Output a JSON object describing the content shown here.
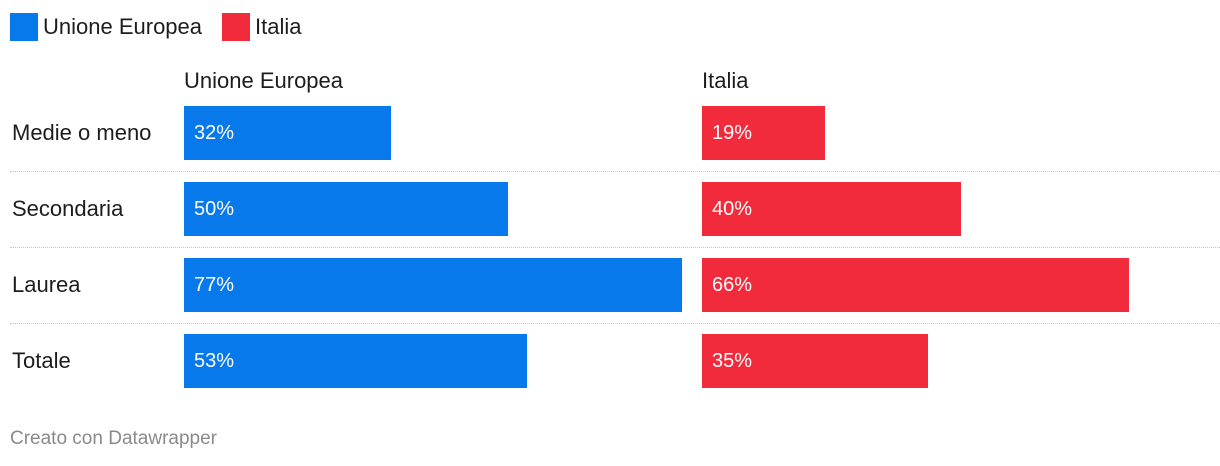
{
  "legend": [
    {
      "label": "Unione Europea",
      "color": "#0779ea"
    },
    {
      "label": "Italia",
      "color": "#f12a3c"
    }
  ],
  "chart_data": {
    "type": "bar",
    "categories": [
      "Medie o meno",
      "Secondaria",
      "Laurea",
      "Totale"
    ],
    "series": [
      {
        "name": "Unione Europea",
        "values": [
          32,
          50,
          77,
          53
        ],
        "labels": [
          "32%",
          "50%",
          "77%",
          "53%"
        ],
        "color": "#0779ea"
      },
      {
        "name": "Italia",
        "values": [
          19,
          40,
          66,
          35
        ],
        "labels": [
          "19%",
          "40%",
          "66%",
          "35%"
        ],
        "color": "#f12a3c"
      }
    ],
    "ylim": [
      0,
      100
    ]
  },
  "credit": "Creato con Datawrapper"
}
